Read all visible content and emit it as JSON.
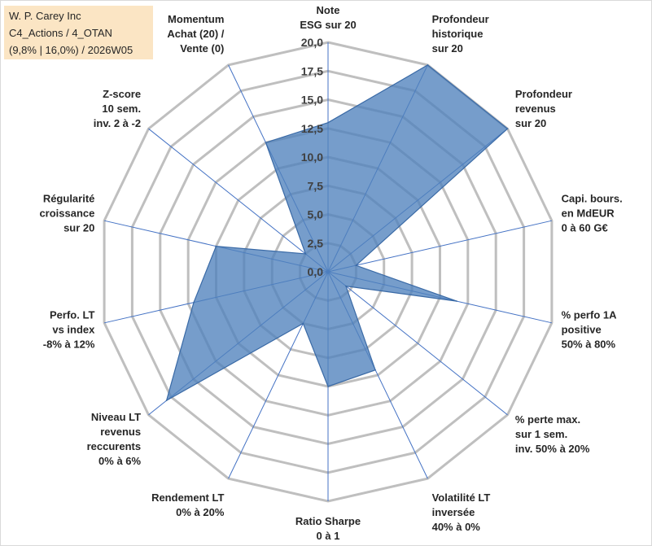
{
  "info_box": {
    "line1": "W. P. Carey Inc",
    "line2": "C4_Actions / 4_OTAN",
    "line3": "(9,8% | 16,0%) / 2026W05"
  },
  "chart_data": {
    "type": "radar",
    "title": "",
    "rmin": 0,
    "rmax": 20,
    "step": 2.5,
    "tick_labels": [
      "0,0",
      "2,5",
      "5,0",
      "7,5",
      "10,0",
      "12,5",
      "15,0",
      "17,5",
      "20,0"
    ],
    "axes": [
      {
        "lines": [
          "Note",
          "ESG sur 20"
        ]
      },
      {
        "lines": [
          "Profondeur",
          "historique",
          "sur 20"
        ]
      },
      {
        "lines": [
          "Profondeur",
          "revenus",
          "sur 20"
        ]
      },
      {
        "lines": [
          "Capi. bours.",
          "en MdEUR",
          "0 à 60 G€"
        ]
      },
      {
        "lines": [
          "% perfo 1A",
          "positive",
          "50% à 80%"
        ]
      },
      {
        "lines": [
          "% perte max.",
          "sur 1 sem.",
          "inv. 50% à 20%"
        ]
      },
      {
        "lines": [
          "Volatilité LT",
          "inversée",
          "40% à 0%"
        ]
      },
      {
        "lines": [
          "Ratio Sharpe",
          "0 à 1"
        ]
      },
      {
        "lines": [
          "Rendement LT",
          "0% à 20%"
        ]
      },
      {
        "lines": [
          "Niveau LT",
          "revenus",
          "reccurents",
          "0% à 6%"
        ]
      },
      {
        "lines": [
          "Perfo. LT",
          "vs index",
          "-8% à 12%"
        ]
      },
      {
        "lines": [
          "Régularité",
          "croissance",
          "sur 20"
        ]
      },
      {
        "lines": [
          "Z-score",
          "10 sem.",
          "inv. 2 à -2"
        ]
      },
      {
        "lines": [
          "Momentum",
          "Achat (20) /",
          "Vente (0)"
        ]
      }
    ],
    "series": [
      {
        "name": "W. P. Carey Inc",
        "values": [
          13.0,
          20.0,
          20.0,
          2.5,
          11.5,
          2.0,
          9.5,
          10.0,
          5.0,
          18.0,
          12.0,
          10.0,
          2.5,
          12.5
        ]
      }
    ],
    "colors": {
      "fill": "#4f81bd",
      "stroke": "#3a6aa6",
      "grid": "#bfbfbf",
      "spoke": "#4472c4"
    }
  }
}
